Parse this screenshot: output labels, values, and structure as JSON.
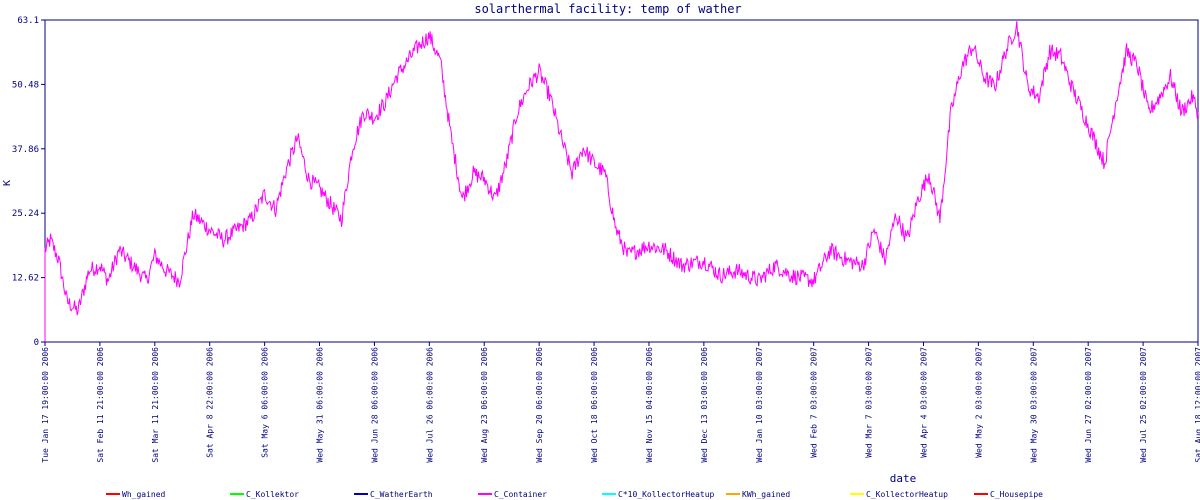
{
  "chart_data": {
    "type": "line",
    "title": "solarthermal facility: temp of wather",
    "xlabel": "date",
    "ylabel": "K",
    "ylim": [
      0,
      63.1
    ],
    "yticks": [
      "0",
      "12.62",
      "25.24",
      "37.86",
      "50.48",
      "63.1"
    ],
    "xticks": [
      "Tue Jan 17 19:00:00 2006",
      "Sat Feb 11 21:00:00 2006",
      "Sat Mar 11 21:00:00 2006",
      "Sat Apr  8 22:00:00 2006",
      "Sat May  6 06:00:00 2006",
      "Wed May 31 06:00:00 2006",
      "Wed Jun 28 06:00:00 2006",
      "Wed Jul 26 06:00:00 2006",
      "Wed Aug 23 06:00:00 2006",
      "Wed Sep 20 06:00:00 2006",
      "Wed Oct 18 06:00:00 2006",
      "Wed Nov 15 04:00:00 2006",
      "Wed Dec 13 03:00:00 2006",
      "Wed Jan 10 03:00:00 2007",
      "Wed Feb  7 03:00:00 2007",
      "Wed Mar  7 03:00:00 2007",
      "Wed Apr  4 03:00:00 2007",
      "Wed May  2 03:00:00 2007",
      "Wed May 30 03:00:00 2007",
      "Wed Jun 27 02:00:00 2007",
      "Wed Jul 25 02:00:00 2007",
      "Sat Aug 18 12:00:00 2007"
    ],
    "legend_position": "bottom",
    "legend": [
      {
        "name": "Wh_gained",
        "color": "#ff0000"
      },
      {
        "name": "C_Kollektor",
        "color": "#00ff00"
      },
      {
        "name": "C_WatherEarth",
        "color": "#0000c0"
      },
      {
        "name": "C_Container",
        "color": "#ff00ff"
      },
      {
        "name": "C*10_KollectorHeatup",
        "color": "#00ffff"
      },
      {
        "name": "KWh_gained",
        "color": "#ffa500"
      },
      {
        "name": "C_KollectorHeatup",
        "color": "#ffff00"
      },
      {
        "name": "C_Housepipe",
        "color": "#ff0000"
      }
    ],
    "series": [
      {
        "name": "C_Container",
        "color": "#ff00ff",
        "x_tick_index": [
          0,
          0.1,
          0.25,
          0.4,
          0.6,
          0.8,
          1.0,
          1.15,
          1.35,
          1.6,
          1.85,
          2.0,
          2.2,
          2.45,
          2.7,
          3.0,
          3.25,
          3.5,
          3.75,
          4.0,
          4.2,
          4.4,
          4.6,
          4.8,
          5.0,
          5.2,
          5.4,
          5.6,
          5.8,
          6.0,
          6.2,
          6.4,
          6.6,
          6.8,
          7.0,
          7.2,
          7.4,
          7.6,
          7.8,
          8.0,
          8.2,
          8.4,
          8.6,
          8.8,
          9.0,
          9.2,
          9.4,
          9.6,
          9.8,
          10.0,
          10.2,
          10.4,
          10.6,
          10.8,
          11.0,
          11.3,
          11.6,
          12.0,
          12.3,
          12.6,
          13.0,
          13.3,
          13.6,
          14.0,
          14.3,
          14.6,
          14.9,
          15.1,
          15.3,
          15.5,
          15.7,
          15.9,
          16.1,
          16.3,
          16.5,
          16.7,
          16.9,
          17.1,
          17.3,
          17.5,
          17.7,
          17.9,
          18.1,
          18.3,
          18.5,
          18.7,
          18.9,
          19.1,
          19.3,
          19.5,
          19.7,
          19.9,
          20.1,
          20.3,
          20.5,
          20.7,
          20.9,
          21.0
        ],
        "values": [
          18,
          20,
          16,
          8,
          6,
          14,
          15,
          12,
          18,
          15,
          12,
          17,
          14,
          12,
          25,
          22,
          20,
          22,
          24,
          29,
          26,
          34,
          40,
          32,
          30,
          27,
          24,
          38,
          45,
          44,
          47,
          52,
          55,
          58,
          60,
          55,
          40,
          28,
          33,
          32,
          28,
          35,
          45,
          50,
          53,
          48,
          40,
          33,
          38,
          35,
          33,
          22,
          17,
          18,
          19,
          18,
          15,
          16,
          13,
          14,
          12,
          15,
          13,
          12,
          18,
          16,
          15,
          22,
          16,
          25,
          20,
          28,
          33,
          24,
          45,
          54,
          58,
          52,
          50,
          57,
          62,
          50,
          48,
          57,
          56,
          50,
          45,
          40,
          35,
          47,
          57,
          54,
          45,
          48,
          52,
          45,
          48,
          45
        ]
      }
    ]
  }
}
